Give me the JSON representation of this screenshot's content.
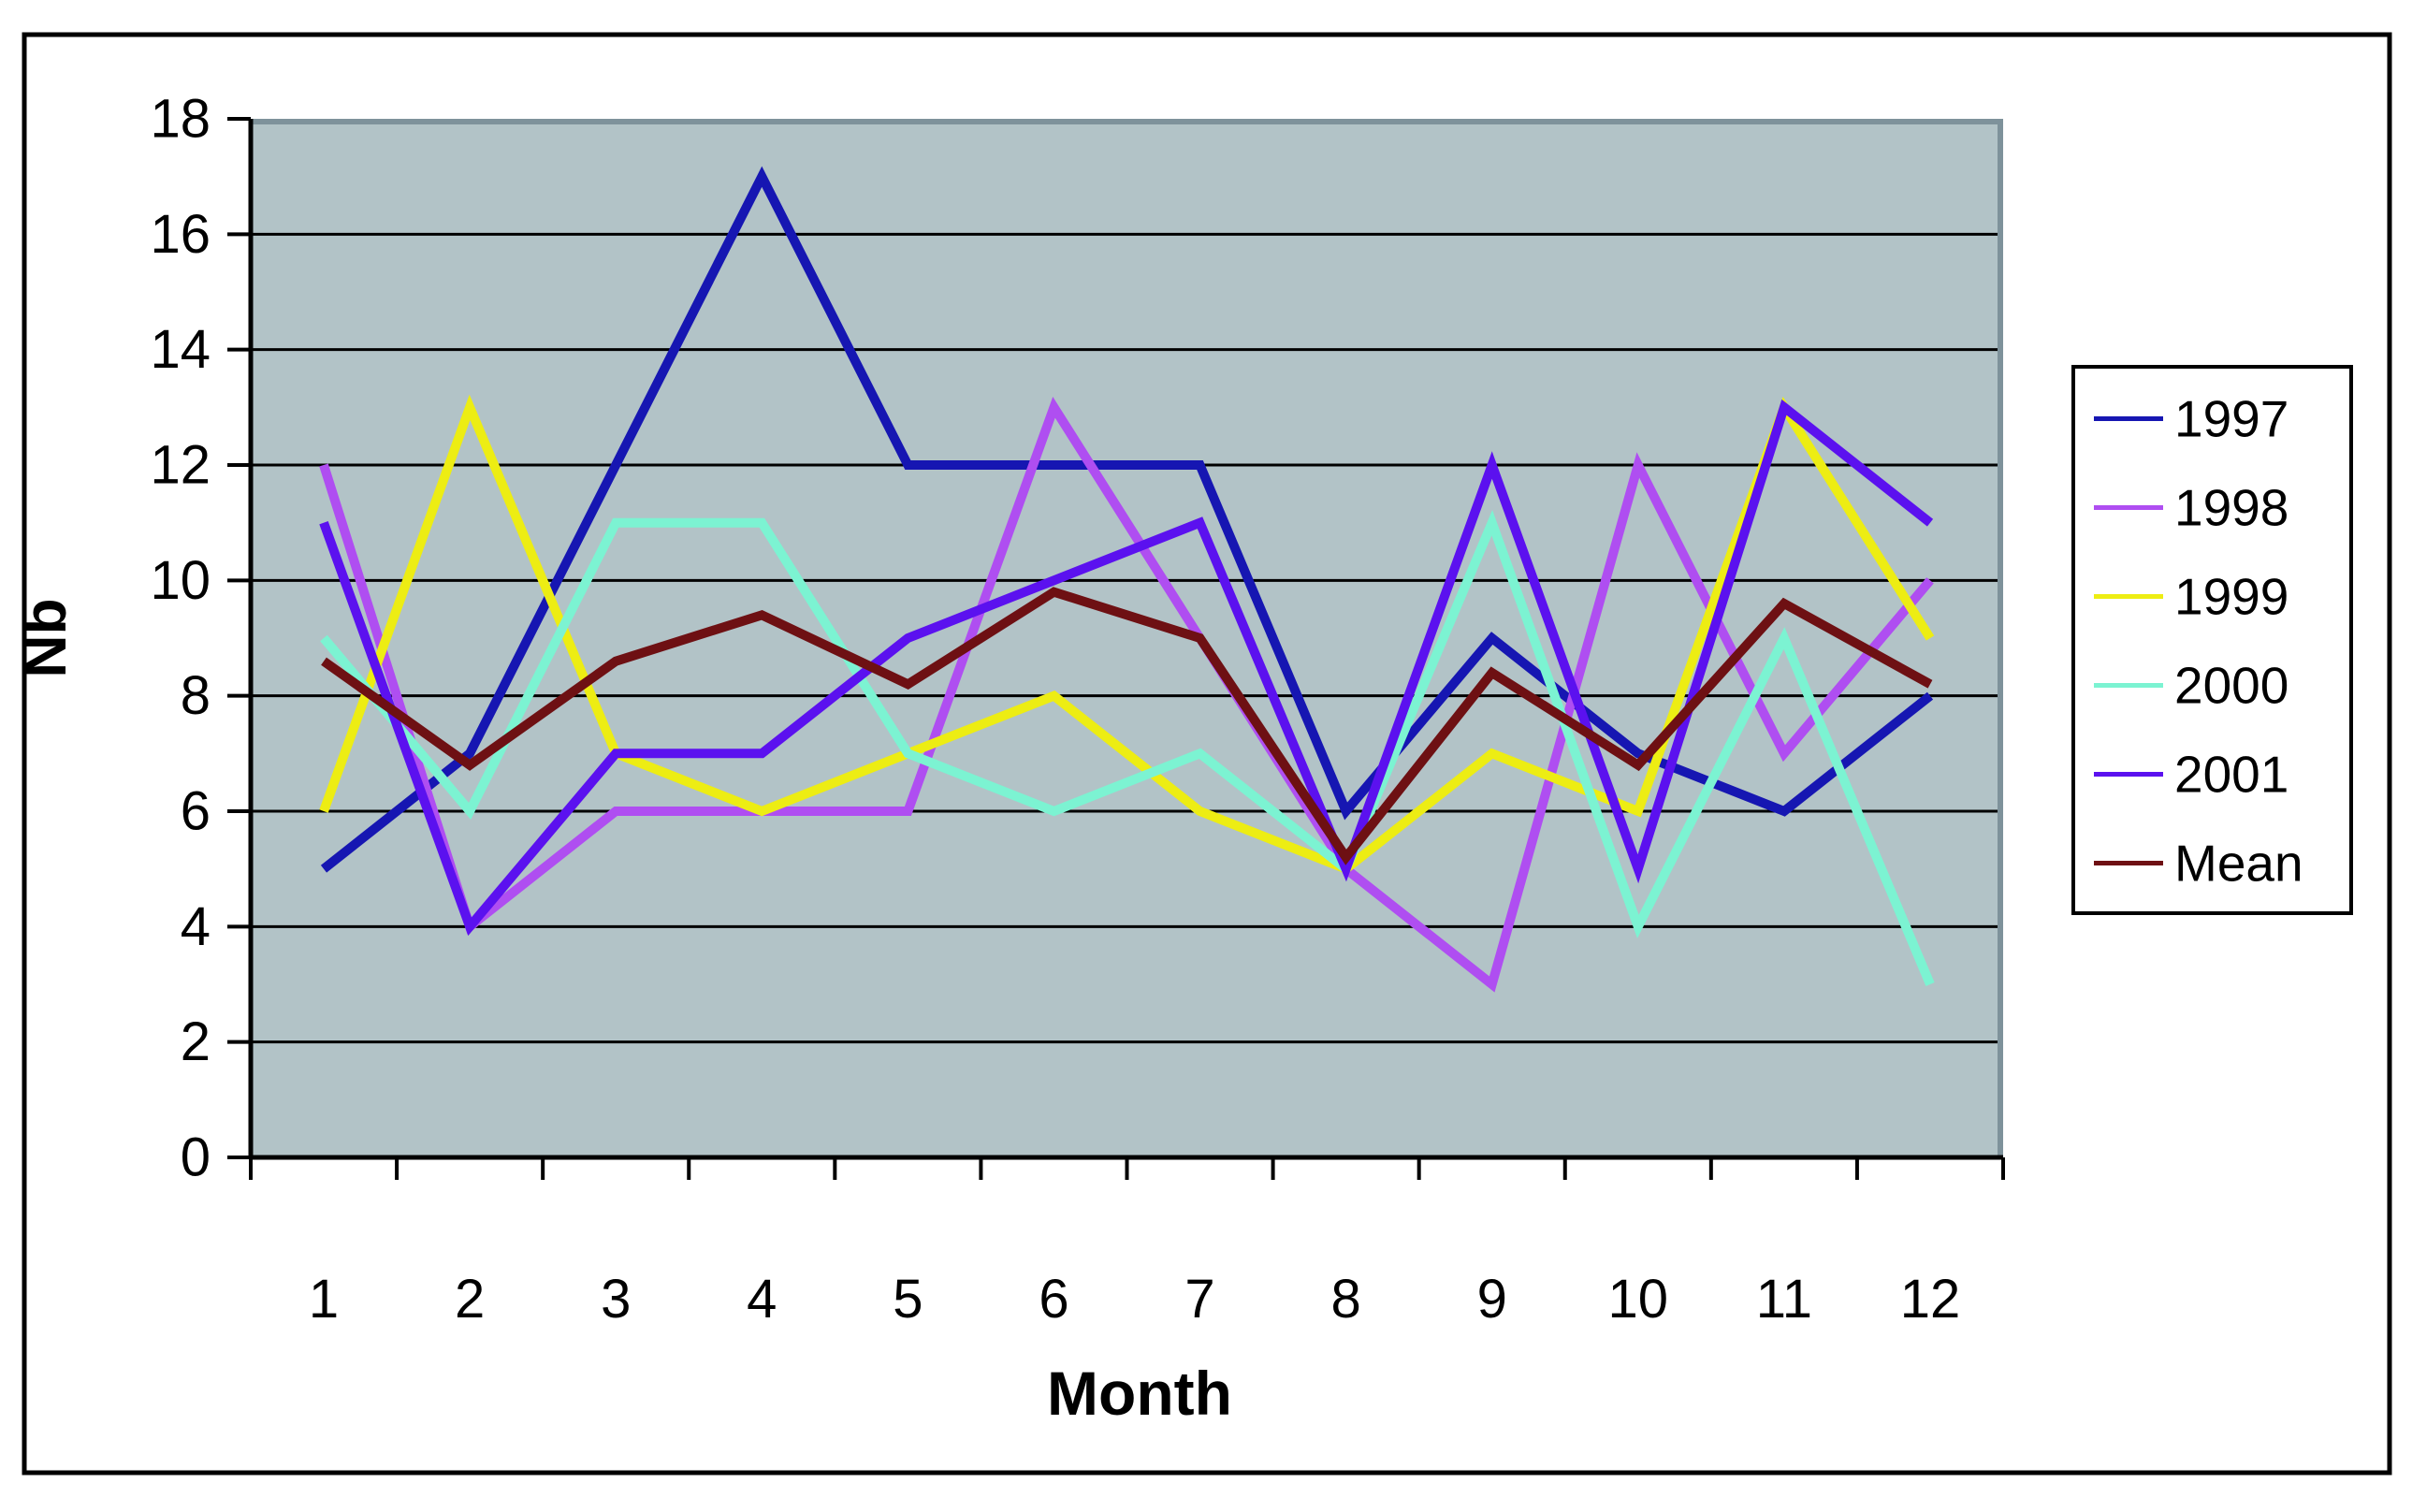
{
  "figure": {
    "background": "#FFFFFF",
    "border_color": "#000000"
  },
  "chart_data": {
    "type": "line",
    "title": "",
    "xlabel": "Month",
    "ylabel": "Nb",
    "x": [
      1,
      2,
      3,
      4,
      5,
      6,
      7,
      8,
      9,
      10,
      11,
      12
    ],
    "ylim": [
      0,
      18
    ],
    "ytick_step": 2,
    "grid": "horizontal-on",
    "plot_bg": "#B2C3C7",
    "plot_border_color": "#7E929B",
    "gridline_color": "#000000",
    "axis_color": "#000000",
    "legend_position": "right",
    "legend_bg": "#FFFFFF",
    "legend_border": "#000000",
    "series": [
      {
        "name": "1997",
        "color": "#1616B2",
        "values": [
          5,
          7,
          12,
          17,
          12,
          12,
          12,
          6,
          9,
          7,
          6,
          8
        ]
      },
      {
        "name": "1998",
        "color": "#AF4EF1",
        "values": [
          12,
          4,
          6,
          6,
          6,
          13,
          9,
          5,
          3,
          12,
          7,
          10
        ]
      },
      {
        "name": "1999",
        "color": "#EDED13",
        "values": [
          6,
          13,
          7,
          6,
          7,
          8,
          6,
          5,
          7,
          6,
          13,
          9
        ]
      },
      {
        "name": "2000",
        "color": "#7CF3D2",
        "values": [
          9,
          6,
          11,
          11,
          7,
          6,
          7,
          5,
          11,
          4,
          9,
          3
        ]
      },
      {
        "name": "2001",
        "color": "#5B11EF",
        "values": [
          11,
          4,
          7,
          7,
          9,
          10,
          11,
          5,
          12,
          5,
          13,
          11
        ]
      },
      {
        "name": "Mean",
        "color": "#6E1013",
        "values": [
          8.6,
          6.8,
          8.6,
          9.4,
          8.2,
          9.8,
          9,
          5.2,
          8.4,
          6.8,
          9.6,
          8.2
        ]
      }
    ]
  }
}
